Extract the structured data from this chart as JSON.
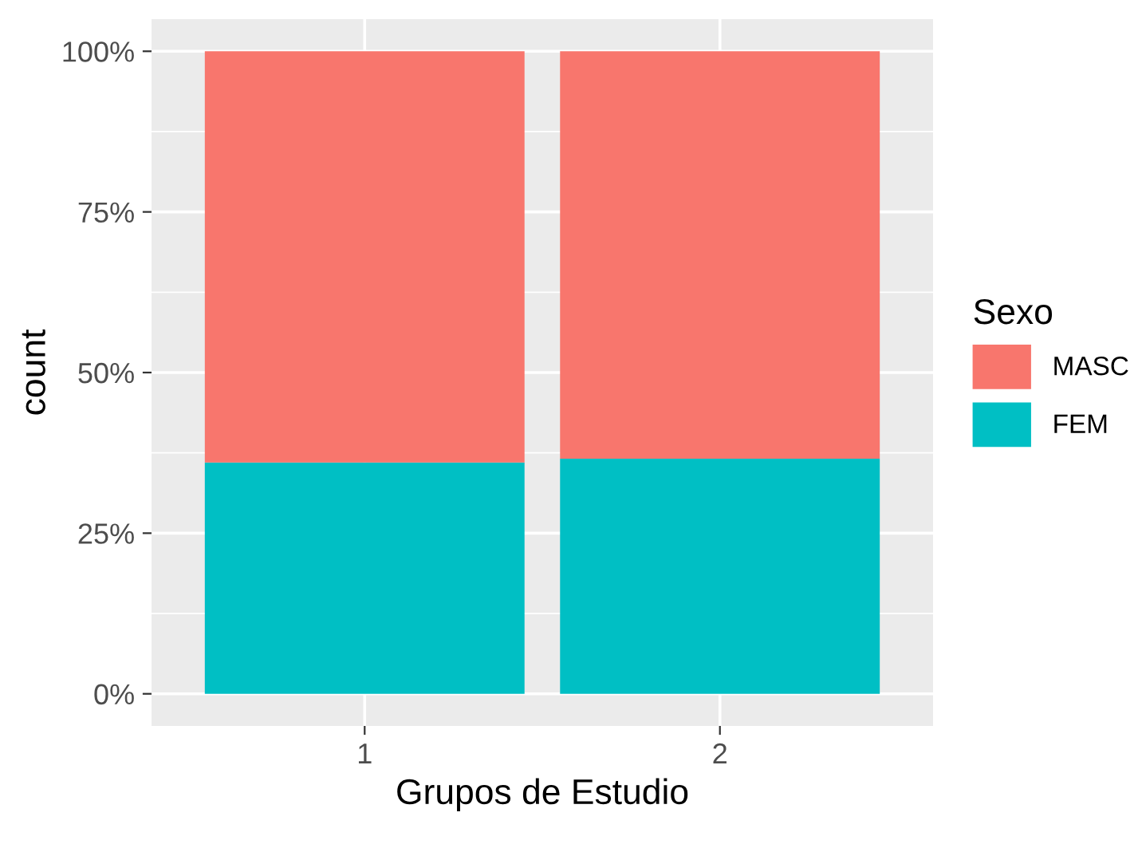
{
  "chart_data": {
    "type": "bar",
    "stacked": true,
    "xlabel": "Grupos de Estudio",
    "ylabel": "count",
    "legend_title": "Sexo",
    "legend": "right",
    "grid": true,
    "categories": [
      "1",
      "2"
    ],
    "series": [
      {
        "name": "FEM",
        "color": "#00bfc4",
        "values": [
          0.36,
          0.366
        ]
      },
      {
        "name": "MASC",
        "color": "#f8766d",
        "values": [
          0.64,
          0.634
        ]
      }
    ],
    "ylim": [
      -0.05,
      1.05
    ],
    "yticks": [
      {
        "value": 0,
        "label": "0%"
      },
      {
        "value": 0.25,
        "label": "25%"
      },
      {
        "value": 0.5,
        "label": "50%"
      },
      {
        "value": 0.75,
        "label": "75%"
      },
      {
        "value": 1,
        "label": "100%"
      }
    ]
  }
}
